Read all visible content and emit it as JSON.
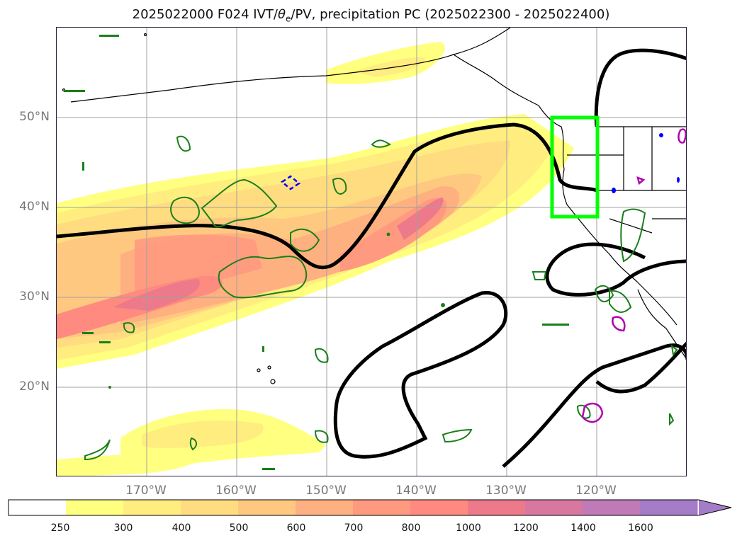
{
  "title": {
    "prefix": "2025022000 F024 IVT/",
    "theta": "θ",
    "sub": "e",
    "suffix": "/PV, precipitation PC (2025022300 - 2025022400)"
  },
  "map": {
    "extent_lon": [
      -180,
      -110
    ],
    "extent_lat": [
      10,
      60
    ],
    "lat_ticks": [
      "20°N",
      "30°N",
      "40°N",
      "50°N"
    ],
    "lon_ticks": [
      "170°W",
      "160°W",
      "150°W",
      "140°W",
      "130°W",
      "120°W"
    ],
    "highlight_box": {
      "lon": [
        -125,
        -120
      ],
      "lat": [
        39,
        50
      ],
      "color": "#00ff00"
    },
    "contour_colors": {
      "pv": "#000000",
      "precip": "#1a7f1a",
      "theta_e_neg": "#0000ff",
      "theta_e_pos": "#b000b0"
    }
  },
  "colorbar": {
    "levels": [
      "250",
      "300",
      "400",
      "500",
      "600",
      "700",
      "800",
      "1000",
      "1200",
      "1400",
      "1600"
    ],
    "colors": [
      "#ffff80",
      "#ffed80",
      "#ffdc80",
      "#ffc880",
      "#ffb080",
      "#ff9a80",
      "#ff8a80",
      "#ec7a8a",
      "#d878a0",
      "#c07ab8",
      "#a57cc8"
    ],
    "extend": "max"
  }
}
